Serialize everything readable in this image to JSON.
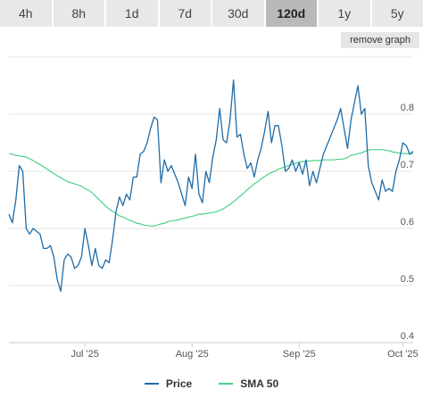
{
  "tabs": [
    {
      "label": "4h",
      "active": false
    },
    {
      "label": "8h",
      "active": false
    },
    {
      "label": "1d",
      "active": false
    },
    {
      "label": "7d",
      "active": false
    },
    {
      "label": "30d",
      "active": false
    },
    {
      "label": "120d",
      "active": true
    },
    {
      "label": "1y",
      "active": false
    },
    {
      "label": "5y",
      "active": false
    }
  ],
  "remove_graph_label": "remove graph",
  "legend": {
    "price_label": "Price",
    "sma_label": "SMA 50"
  },
  "colors": {
    "price": "#1f6ca8",
    "sma": "#4cd08a",
    "grid": "#e6e6e6",
    "tab_active": "#b9b9b9",
    "tab": "#e8e8e8"
  },
  "chart_data": {
    "type": "line",
    "x_ticks": [
      "Jul '25",
      "Aug '25",
      "Sep '25",
      "Oct '25"
    ],
    "y_ticks": [
      "0.4",
      "0.5",
      "0.6",
      "0.7",
      "0.8"
    ],
    "ylim": [
      0.4,
      0.9
    ],
    "grid": true,
    "legend_position": "bottom",
    "series": [
      {
        "name": "Price",
        "values": [
          0.625,
          0.61,
          0.65,
          0.71,
          0.7,
          0.6,
          0.59,
          0.6,
          0.595,
          0.59,
          0.565,
          0.565,
          0.57,
          0.55,
          0.51,
          0.49,
          0.545,
          0.555,
          0.55,
          0.53,
          0.535,
          0.55,
          0.6,
          0.57,
          0.535,
          0.565,
          0.535,
          0.53,
          0.545,
          0.54,
          0.58,
          0.63,
          0.655,
          0.64,
          0.66,
          0.65,
          0.69,
          0.69,
          0.73,
          0.735,
          0.75,
          0.775,
          0.795,
          0.79,
          0.68,
          0.72,
          0.7,
          0.71,
          0.695,
          0.68,
          0.66,
          0.64,
          0.69,
          0.67,
          0.73,
          0.66,
          0.645,
          0.7,
          0.68,
          0.725,
          0.755,
          0.81,
          0.755,
          0.75,
          0.79,
          0.86,
          0.76,
          0.765,
          0.73,
          0.705,
          0.715,
          0.69,
          0.72,
          0.74,
          0.77,
          0.805,
          0.75,
          0.78,
          0.78,
          0.745,
          0.7,
          0.705,
          0.72,
          0.7,
          0.715,
          0.695,
          0.72,
          0.675,
          0.7,
          0.68,
          0.705,
          0.73,
          0.745,
          0.76,
          0.775,
          0.79,
          0.81,
          0.775,
          0.74,
          0.79,
          0.82,
          0.85,
          0.8,
          0.81,
          0.71,
          0.68,
          0.665,
          0.65,
          0.685,
          0.665,
          0.67,
          0.665,
          0.7,
          0.72,
          0.75,
          0.745,
          0.73,
          0.735
        ]
      },
      {
        "name": "SMA 50",
        "values": [
          0.731,
          0.73,
          0.728,
          0.727,
          0.726,
          0.725,
          0.722,
          0.719,
          0.715,
          0.712,
          0.708,
          0.704,
          0.7,
          0.696,
          0.692,
          0.689,
          0.685,
          0.682,
          0.68,
          0.678,
          0.676,
          0.674,
          0.67,
          0.667,
          0.663,
          0.657,
          0.651,
          0.645,
          0.639,
          0.634,
          0.63,
          0.626,
          0.622,
          0.62,
          0.617,
          0.614,
          0.612,
          0.609,
          0.608,
          0.606,
          0.605,
          0.604,
          0.604,
          0.606,
          0.608,
          0.609,
          0.612,
          0.613,
          0.614,
          0.615,
          0.617,
          0.618,
          0.62,
          0.621,
          0.623,
          0.625,
          0.625,
          0.626,
          0.627,
          0.628,
          0.629,
          0.632,
          0.634,
          0.638,
          0.642,
          0.647,
          0.652,
          0.657,
          0.662,
          0.668,
          0.673,
          0.678,
          0.682,
          0.687,
          0.691,
          0.695,
          0.698,
          0.7,
          0.704,
          0.706,
          0.708,
          0.71,
          0.712,
          0.714,
          0.716,
          0.717,
          0.718,
          0.718,
          0.719,
          0.719,
          0.719,
          0.72,
          0.72,
          0.72,
          0.72,
          0.721,
          0.721,
          0.722,
          0.724,
          0.728,
          0.729,
          0.731,
          0.732,
          0.735,
          0.737,
          0.738,
          0.738,
          0.738,
          0.738,
          0.737,
          0.736,
          0.734,
          0.733,
          0.732,
          0.731,
          0.731,
          0.731,
          0.731
        ]
      }
    ]
  }
}
